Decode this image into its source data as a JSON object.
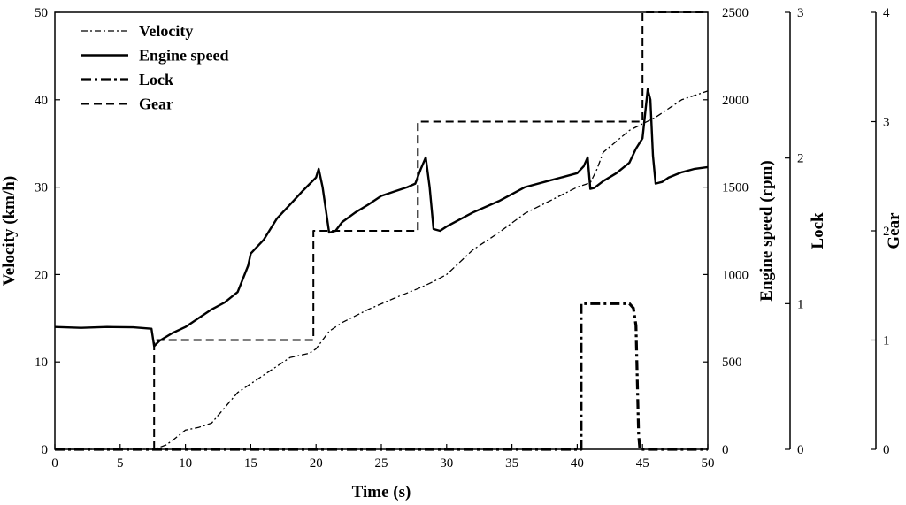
{
  "chart_data": {
    "type": "line",
    "xlabel": "Time (s)",
    "xlim": [
      0,
      50
    ],
    "xticks": [
      0,
      5,
      10,
      15,
      20,
      25,
      30,
      35,
      40,
      45,
      50
    ],
    "axes": {
      "velocity": {
        "label": "Velocity (km/h)",
        "lim": [
          0,
          50
        ],
        "ticks": [
          0,
          10,
          20,
          30,
          40,
          50
        ]
      },
      "engine": {
        "label": "Engine speed (rpm)",
        "lim": [
          0,
          2500
        ],
        "ticks": [
          0,
          500,
          1000,
          1500,
          2000,
          2500
        ]
      },
      "lock": {
        "label": "Lock",
        "lim": [
          0,
          3
        ],
        "ticks": [
          0,
          1,
          2,
          3
        ]
      },
      "gear": {
        "label": "Gear",
        "lim": [
          0,
          4
        ],
        "ticks": [
          0,
          1,
          2,
          3,
          4
        ]
      }
    },
    "legend": [
      "Velocity",
      "Engine speed",
      "Lock",
      "Gear"
    ],
    "series": [
      {
        "name": "Velocity",
        "axis": "velocity",
        "style": "dashdot-thin",
        "x": [
          0,
          6,
          7.6,
          8.5,
          9,
          10,
          11,
          12,
          14,
          16,
          18,
          19.5,
          20,
          21,
          22,
          24,
          26,
          28,
          29,
          30,
          32,
          34,
          36,
          38,
          40,
          41,
          41.5,
          42,
          44,
          46,
          48,
          50
        ],
        "y": [
          0,
          0,
          0,
          0.5,
          1,
          2.2,
          2.5,
          3,
          6.5,
          8.5,
          10.5,
          11,
          11.5,
          13.5,
          14.5,
          16,
          17.3,
          18.5,
          19.2,
          20,
          22.8,
          24.8,
          27,
          28.5,
          30,
          30.5,
          32,
          34,
          36.5,
          38,
          40,
          41
        ]
      },
      {
        "name": "Engine speed",
        "axis": "engine",
        "style": "solid",
        "x": [
          0,
          2,
          4,
          6,
          7.4,
          7.6,
          8,
          9,
          10,
          11,
          12,
          13,
          14,
          14.8,
          15,
          16,
          17,
          18,
          19,
          20,
          20.2,
          20.5,
          21,
          21.5,
          22,
          23,
          24,
          25,
          26,
          27,
          27.6,
          28,
          28.4,
          28.7,
          29,
          29.5,
          30,
          32,
          34,
          36,
          38,
          40,
          40.5,
          40.8,
          41,
          41.3,
          42,
          43,
          44,
          44.5,
          45,
          45.4,
          45.6,
          45.8,
          46,
          46.5,
          47,
          48,
          49,
          50
        ],
        "y": [
          700,
          695,
          700,
          698,
          690,
          590,
          620,
          665,
          700,
          750,
          800,
          840,
          900,
          1050,
          1120,
          1200,
          1320,
          1400,
          1480,
          1555,
          1605,
          1500,
          1240,
          1250,
          1300,
          1355,
          1400,
          1450,
          1475,
          1500,
          1520,
          1600,
          1670,
          1500,
          1260,
          1250,
          1275,
          1355,
          1420,
          1500,
          1540,
          1580,
          1620,
          1670,
          1490,
          1495,
          1535,
          1580,
          1640,
          1720,
          1780,
          2060,
          2000,
          1680,
          1520,
          1530,
          1555,
          1585,
          1605,
          1615
        ]
      },
      {
        "name": "Lock",
        "axis": "lock",
        "style": "dashdot-thick",
        "x": [
          0,
          40.3,
          40.3,
          41,
          42,
          43,
          44,
          44.3,
          44.5,
          44.7,
          44.8,
          50
        ],
        "y": [
          0,
          0,
          1,
          1,
          1,
          1,
          1,
          0.97,
          0.85,
          0.1,
          0,
          0
        ]
      },
      {
        "name": "Gear",
        "axis": "gear",
        "style": "dashed",
        "x": [
          7.6,
          7.6,
          19.8,
          19.8,
          27.8,
          27.8,
          45,
          45,
          50
        ],
        "y": [
          0,
          1,
          1,
          2,
          2,
          3,
          3,
          4,
          4
        ]
      }
    ]
  }
}
